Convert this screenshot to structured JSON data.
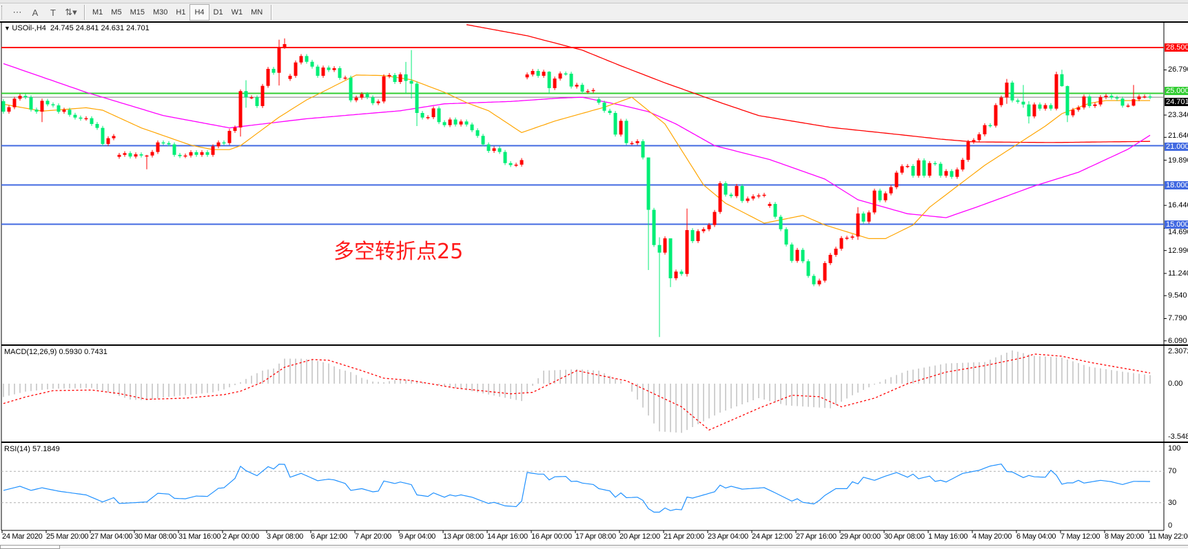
{
  "toolbar": {
    "tools": [
      {
        "name": "grid-icon",
        "glyph": "⋯"
      },
      {
        "name": "text-tool-icon",
        "glyph": "A"
      },
      {
        "name": "text-label-icon",
        "glyph": "T"
      },
      {
        "name": "arrows-icon",
        "glyph": "⇅▾"
      }
    ],
    "timeframes": [
      "M1",
      "M5",
      "M15",
      "M30",
      "H1",
      "H4",
      "D1",
      "W1",
      "MN"
    ],
    "selected_timeframe": "H4"
  },
  "chart": {
    "header": "USOil-,H4  24.745 24.841 24.631 24.701",
    "symbol": "USOil-",
    "period": "H4",
    "ohlc": {
      "open": 24.745,
      "high": 24.841,
      "low": 24.631,
      "close": 24.701
    },
    "annotation": "多空转折点25",
    "colors": {
      "bull": "#ff0000",
      "bear": "#00ee76",
      "ma_fast": "#ffa500",
      "ma_mid": "#ff00ff",
      "ma_slow": "#ff0000",
      "resistance": "#ff0000",
      "pivot": "#32cd32",
      "support": "#4169e1",
      "bid_line": "#808080"
    },
    "price_axis": [
      "26.790",
      "23.340",
      "21.640",
      "19.890",
      "16.440",
      "14.690",
      "12.990",
      "11.240",
      "9.540",
      "7.790",
      "6.090"
    ],
    "levels": [
      {
        "label": "28.500",
        "value": 28.5,
        "color": "#ff0000"
      },
      {
        "label": "25.000",
        "value": 25.0,
        "color": "#32cd32"
      },
      {
        "label": "21.000",
        "value": 21.0,
        "color": "#4169e1"
      },
      {
        "label": "18.000",
        "value": 18.0,
        "color": "#4169e1"
      },
      {
        "label": "15.000",
        "value": 15.0,
        "color": "#4169e1"
      }
    ],
    "current_price": {
      "label": "24.701",
      "value": 24.701
    },
    "first_open": 24.4,
    "closes": [
      23.6,
      23.94,
      24.59,
      24.81,
      24.7,
      23.76,
      23.6,
      24.43,
      24.16,
      24.08,
      23.59,
      23.75,
      23.36,
      23.15,
      23.06,
      23.1,
      22.66,
      22.36,
      21.13,
      21.57,
      21.74,
      20.3,
      20.43,
      20.17,
      20.34,
      20.25,
      20.25,
      20.52,
      21.25,
      21.2,
      21.1,
      20.3,
      20.2,
      20.25,
      20.5,
      20.3,
      20.5,
      20.3,
      20.95,
      21.25,
      21.2,
      22.13,
      22.39,
      25.17,
      24.7,
      24.7,
      24.03,
      25.57,
      26.87,
      26.57,
      28.53,
      28.76,
      26.34,
      27.36,
      27.85,
      27.41,
      27.04,
      26.34,
      26.97,
      26.78,
      26.92,
      26.18,
      26.2,
      24.47,
      24.67,
      24.94,
      24.7,
      24.25,
      24.38,
      26.3,
      26.4,
      25.87,
      26.45,
      25.95,
      25.74,
      23.5,
      23.15,
      23.18,
      23.85,
      22.8,
      22.57,
      23.0,
      22.62,
      22.85,
      22.62,
      22.18,
      21.75,
      21.1,
      20.6,
      20.8,
      20.52,
      19.67,
      19.52,
      19.55,
      19.9,
      26.44,
      26.71,
      26.34,
      26.65,
      25.4,
      26.13,
      26.52,
      26.5,
      25.52,
      25.65,
      25.13,
      25.17,
      25.25,
      24.29,
      23.67,
      23.5,
      21.85,
      22.9,
      21.2,
      21.2,
      21.34,
      20.1,
      16.1,
      13.41,
      12.83,
      13.92,
      10.87,
      11.38,
      11.2,
      14.55,
      13.71,
      14.47,
      14.62,
      14.94,
      15.94,
      18.13,
      17.26,
      17.15,
      17.92,
      16.78,
      16.96,
      17.13,
      17.2,
      17.25,
      16.55,
      15.57,
      14.62,
      13.45,
      12.2,
      13.04,
      12.17,
      11.05,
      10.41,
      10.69,
      12.03,
      12.66,
      13.13,
      13.94,
      13.97,
      14.06,
      15.82,
      15.2,
      15.9,
      17.57,
      16.83,
      17.36,
      17.83,
      18.94,
      19.43,
      19.45,
      18.71,
      19.88,
      18.71,
      19.67,
      19.62,
      18.71,
      19.06,
      18.62,
      19.18,
      19.92,
      21.29,
      21.43,
      21.87,
      22.57,
      22.53,
      24.1,
      24.68,
      25.82,
      24.46,
      24.36,
      24.15,
      23.24,
      24.15,
      23.83,
      24.1,
      23.83,
      26.46,
      25.55,
      23.32,
      23.74,
      23.92,
      24.76,
      24.03,
      24.15,
      24.71,
      24.82,
      24.68,
      24.6,
      24.06,
      24.06,
      24.55,
      24.76,
      24.76,
      24.701
    ],
    "gap_opens": [
      [
        21,
        20.15
      ],
      [
        52,
        26.1
      ],
      [
        95,
        26.22
      ],
      [
        108,
        24.55
      ],
      [
        139,
        16.4
      ]
    ],
    "wicks": [
      [
        7,
        24.6,
        22.8
      ],
      [
        26,
        20.3,
        19.2
      ],
      [
        43,
        25.3,
        21.7
      ],
      [
        44,
        26.0,
        23.9
      ],
      [
        50,
        29.1,
        25.6
      ],
      [
        51,
        29.2,
        28.4
      ],
      [
        73,
        27.4,
        25.0
      ],
      [
        74,
        28.3,
        24.6
      ],
      [
        75,
        25.9,
        22.5
      ],
      [
        99,
        26.7,
        25.0
      ],
      [
        117,
        20.1,
        11.5
      ],
      [
        119,
        14.0,
        6.38
      ],
      [
        121,
        13.9,
        10.2
      ],
      [
        124,
        16.2,
        11.0
      ],
      [
        155,
        16.3,
        13.8
      ],
      [
        182,
        26.1,
        24.2
      ],
      [
        185,
        25.64,
        23.9
      ],
      [
        186,
        24.4,
        22.7
      ],
      [
        191,
        26.65,
        23.7
      ],
      [
        192,
        26.8,
        25.5
      ],
      [
        193,
        25.6,
        22.8
      ],
      [
        205,
        25.64,
        24.0
      ]
    ],
    "ma_fast": [
      [
        0,
        24.17
      ],
      [
        7,
        23.64
      ],
      [
        15,
        23.9
      ],
      [
        18,
        23.71
      ],
      [
        25,
        22.36
      ],
      [
        34,
        21.04
      ],
      [
        38,
        20.7
      ],
      [
        41,
        20.7
      ],
      [
        43,
        21.0
      ],
      [
        50,
        23.18
      ],
      [
        55,
        24.5
      ],
      [
        64,
        26.4
      ],
      [
        69,
        26.36
      ],
      [
        74,
        26.04
      ],
      [
        80,
        25.08
      ],
      [
        84,
        24.29
      ],
      [
        88,
        23.67
      ],
      [
        94,
        22.0
      ],
      [
        100,
        22.88
      ],
      [
        109,
        23.94
      ],
      [
        112,
        24.4
      ],
      [
        114,
        24.7
      ],
      [
        120,
        22.66
      ],
      [
        127,
        18.0
      ],
      [
        131,
        16.6
      ],
      [
        138,
        15.08
      ],
      [
        145,
        15.67
      ],
      [
        149,
        14.94
      ],
      [
        157,
        13.9
      ],
      [
        160,
        13.9
      ],
      [
        165,
        14.94
      ],
      [
        168,
        16.3
      ],
      [
        178,
        19.5
      ],
      [
        189,
        22.5
      ],
      [
        192,
        23.45
      ],
      [
        197,
        24.24
      ],
      [
        200,
        24.45
      ],
      [
        208,
        24.45
      ]
    ],
    "ma_mid": [
      [
        0,
        27.27
      ],
      [
        15,
        25.08
      ],
      [
        29,
        23.3
      ],
      [
        41,
        22.36
      ],
      [
        55,
        23.06
      ],
      [
        72,
        23.67
      ],
      [
        80,
        24.2
      ],
      [
        92,
        24.38
      ],
      [
        101,
        24.64
      ],
      [
        105,
        24.7
      ],
      [
        112,
        24.1
      ],
      [
        117,
        23.6
      ],
      [
        122,
        22.66
      ],
      [
        129,
        21.0
      ],
      [
        139,
        19.94
      ],
      [
        149,
        18.45
      ],
      [
        155,
        16.87
      ],
      [
        164,
        15.8
      ],
      [
        171,
        15.5
      ],
      [
        177,
        16.38
      ],
      [
        187,
        17.92
      ],
      [
        195,
        18.97
      ],
      [
        204,
        20.73
      ],
      [
        208,
        21.8
      ]
    ],
    "ma_slow": [
      [
        84,
        30.25
      ],
      [
        95,
        29.4
      ],
      [
        105,
        28.3
      ],
      [
        112,
        27.1
      ],
      [
        120,
        25.8
      ],
      [
        130,
        24.3
      ],
      [
        137,
        23.3
      ],
      [
        150,
        22.4
      ],
      [
        162,
        21.87
      ],
      [
        170,
        21.5
      ],
      [
        176,
        21.29
      ],
      [
        190,
        21.24
      ],
      [
        208,
        21.33
      ]
    ]
  },
  "macd": {
    "header": "MACD(12,26,9) 0.5930 0.7431",
    "axis": [
      "2.3072",
      "0.00",
      "-3.5484"
    ],
    "histogram": [
      [
        0,
        -0.92
      ],
      [
        4,
        -0.55
      ],
      [
        9,
        -0.35
      ],
      [
        16,
        -0.3
      ],
      [
        19,
        -0.6
      ],
      [
        23,
        -1.1
      ],
      [
        26,
        -1.15
      ],
      [
        29,
        -0.95
      ],
      [
        33,
        -0.8
      ],
      [
        38,
        -0.6
      ],
      [
        40,
        -0.4
      ],
      [
        42,
        -0.1
      ],
      [
        43,
        0.1
      ],
      [
        45,
        0.55
      ],
      [
        47,
        0.9
      ],
      [
        49,
        1.05
      ],
      [
        51,
        1.73
      ],
      [
        54,
        1.73
      ],
      [
        56,
        1.65
      ],
      [
        59,
        1.4
      ],
      [
        61,
        1.0
      ],
      [
        63,
        0.8
      ],
      [
        65,
        0.4
      ],
      [
        67,
        0.15
      ],
      [
        69,
        0.1
      ],
      [
        71,
        0.25
      ],
      [
        74,
        0.25
      ],
      [
        82,
        -0.3
      ],
      [
        94,
        -1.2
      ],
      [
        98,
        0.9
      ],
      [
        104,
        1.0
      ],
      [
        108,
        0.9
      ],
      [
        113,
        0.0
      ],
      [
        119,
        -3.3
      ],
      [
        123,
        -3.4
      ],
      [
        130,
        -2.0
      ],
      [
        137,
        -1.0
      ],
      [
        142,
        -1.5
      ],
      [
        150,
        -1.7
      ],
      [
        154,
        -0.8
      ],
      [
        160,
        0.3
      ],
      [
        164,
        0.9
      ],
      [
        171,
        1.4
      ],
      [
        178,
        1.5
      ],
      [
        183,
        2.3
      ],
      [
        187,
        1.93
      ],
      [
        192,
        1.8
      ],
      [
        197,
        1.17
      ],
      [
        203,
        0.83
      ],
      [
        208,
        0.59
      ]
    ],
    "signal": [
      [
        0,
        -1.37
      ],
      [
        4,
        -0.92
      ],
      [
        9,
        -0.48
      ],
      [
        16,
        -0.44
      ],
      [
        21,
        -0.68
      ],
      [
        26,
        -1.08
      ],
      [
        33,
        -1.0
      ],
      [
        40,
        -0.76
      ],
      [
        43,
        -0.52
      ],
      [
        47,
        0.11
      ],
      [
        51,
        1.14
      ],
      [
        56,
        1.67
      ],
      [
        59,
        1.62
      ],
      [
        65,
        0.9
      ],
      [
        69,
        0.38
      ],
      [
        74,
        0.22
      ],
      [
        82,
        -0.3
      ],
      [
        92,
        -0.7
      ],
      [
        96,
        -0.6
      ],
      [
        104,
        0.9
      ],
      [
        113,
        0.2
      ],
      [
        123,
        -1.6
      ],
      [
        128,
        -3.2
      ],
      [
        137,
        -1.7
      ],
      [
        143,
        -0.8
      ],
      [
        148,
        -0.9
      ],
      [
        152,
        -1.6
      ],
      [
        158,
        -1.0
      ],
      [
        164,
        0.0
      ],
      [
        171,
        0.8
      ],
      [
        178,
        1.25
      ],
      [
        185,
        1.8
      ],
      [
        187,
        2.05
      ],
      [
        192,
        1.9
      ],
      [
        197,
        1.48
      ],
      [
        208,
        0.74
      ]
    ]
  },
  "rsi": {
    "header": "RSI(14) 57.1849",
    "axis": [
      {
        "label": "100",
        "value": 100
      },
      {
        "label": "70",
        "value": 70
      },
      {
        "label": "30",
        "value": 30
      },
      {
        "label": "0",
        "value": 0
      }
    ],
    "levels": [
      70,
      30
    ],
    "series": [
      [
        0,
        45.7
      ],
      [
        3,
        51
      ],
      [
        5,
        45.7
      ],
      [
        7,
        49
      ],
      [
        10,
        44.7
      ],
      [
        15,
        39.9
      ],
      [
        18,
        31
      ],
      [
        20,
        36.4
      ],
      [
        21,
        29
      ],
      [
        26,
        31
      ],
      [
        28,
        42
      ],
      [
        30,
        41
      ],
      [
        31,
        35.6
      ],
      [
        33,
        35
      ],
      [
        35,
        38.5
      ],
      [
        37,
        38
      ],
      [
        39,
        48.4
      ],
      [
        40,
        49
      ],
      [
        42,
        61
      ],
      [
        43,
        76.4
      ],
      [
        44,
        70.8
      ],
      [
        46,
        64.4
      ],
      [
        48,
        75.9
      ],
      [
        49,
        73
      ],
      [
        50,
        79
      ],
      [
        51,
        78.9
      ],
      [
        52,
        62.5
      ],
      [
        54,
        67.4
      ],
      [
        57,
        58
      ],
      [
        59,
        60
      ],
      [
        60,
        59
      ],
      [
        62,
        54.5
      ],
      [
        63,
        45.7
      ],
      [
        65,
        47.9
      ],
      [
        67,
        43.9
      ],
      [
        68,
        44.7
      ],
      [
        69,
        57.6
      ],
      [
        71,
        54.5
      ],
      [
        72,
        56.4
      ],
      [
        74,
        53
      ],
      [
        75,
        40
      ],
      [
        77,
        38
      ],
      [
        78,
        42.5
      ],
      [
        80,
        37
      ],
      [
        81,
        40
      ],
      [
        82,
        38.5
      ],
      [
        83,
        40
      ],
      [
        85,
        37
      ],
      [
        88,
        29
      ],
      [
        89,
        30.5
      ],
      [
        91,
        26
      ],
      [
        93,
        25
      ],
      [
        94,
        31.9
      ],
      [
        95,
        68.5
      ],
      [
        97,
        66.4
      ],
      [
        98,
        66.4
      ],
      [
        99,
        59
      ],
      [
        100,
        63
      ],
      [
        102,
        63.5
      ],
      [
        103,
        57
      ],
      [
        104,
        57.5
      ],
      [
        105,
        55
      ],
      [
        107,
        53.2
      ],
      [
        108,
        47.9
      ],
      [
        110,
        45
      ],
      [
        111,
        37
      ],
      [
        112,
        42.5
      ],
      [
        113,
        36.4
      ],
      [
        115,
        37
      ],
      [
        116,
        33
      ],
      [
        117,
        22.5
      ],
      [
        118,
        18
      ],
      [
        119,
        18
      ],
      [
        120,
        23.3
      ],
      [
        121,
        19.9
      ],
      [
        122,
        21.7
      ],
      [
        123,
        21
      ],
      [
        124,
        37.2
      ],
      [
        125,
        35.9
      ],
      [
        127,
        39.9
      ],
      [
        129,
        43.9
      ],
      [
        130,
        52.4
      ],
      [
        131,
        48.7
      ],
      [
        132,
        51
      ],
      [
        134,
        47.3
      ],
      [
        137,
        48.7
      ],
      [
        138,
        49.2
      ],
      [
        140,
        42.5
      ],
      [
        143,
        32
      ],
      [
        144,
        35
      ],
      [
        145,
        30.5
      ],
      [
        147,
        28.4
      ],
      [
        148,
        33
      ],
      [
        149,
        39.3
      ],
      [
        151,
        47.9
      ],
      [
        153,
        47.9
      ],
      [
        154,
        56.7
      ],
      [
        155,
        54
      ],
      [
        156,
        62.5
      ],
      [
        158,
        58.5
      ],
      [
        160,
        63.9
      ],
      [
        162,
        68.4
      ],
      [
        164,
        62.5
      ],
      [
        165,
        66.4
      ],
      [
        166,
        60.4
      ],
      [
        168,
        63.9
      ],
      [
        169,
        57.2
      ],
      [
        170,
        58.5
      ],
      [
        171,
        56.4
      ],
      [
        174,
        67.3
      ],
      [
        177,
        71.3
      ],
      [
        179,
        76.7
      ],
      [
        181,
        79.3
      ],
      [
        182,
        69.7
      ],
      [
        183,
        69.1
      ],
      [
        185,
        62
      ],
      [
        186,
        64.7
      ],
      [
        187,
        63
      ],
      [
        189,
        62.5
      ],
      [
        190,
        71.3
      ],
      [
        191,
        65
      ],
      [
        192,
        53.6
      ],
      [
        193,
        55.3
      ],
      [
        194,
        55.3
      ],
      [
        195,
        58.5
      ],
      [
        196,
        55
      ],
      [
        199,
        58.5
      ],
      [
        201,
        56.7
      ],
      [
        203,
        53.2
      ],
      [
        205,
        57.2
      ],
      [
        208,
        57
      ]
    ]
  },
  "time_axis": [
    "24 Mar 2020",
    "25 Mar 20:00",
    "27 Mar 04:00",
    "30 Mar 08:00",
    "31 Mar 16:00",
    "2 Apr 00:00",
    "3 Apr 08:00",
    "6 Apr 12:00",
    "7 Apr 20:00",
    "9 Apr 04:00",
    "13 Apr 08:00",
    "14 Apr 16:00",
    "16 Apr 00:00",
    "17 Apr 08:00",
    "20 Apr 12:00",
    "21 Apr 20:00",
    "23 Apr 04:00",
    "24 Apr 12:00",
    "27 Apr 16:00",
    "29 Apr 00:00",
    "30 Apr 08:00",
    "1 May 16:00",
    "4 May 20:00",
    "6 May 04:00",
    "7 May 12:00",
    "8 May 20:00",
    "11 May 22:00"
  ]
}
